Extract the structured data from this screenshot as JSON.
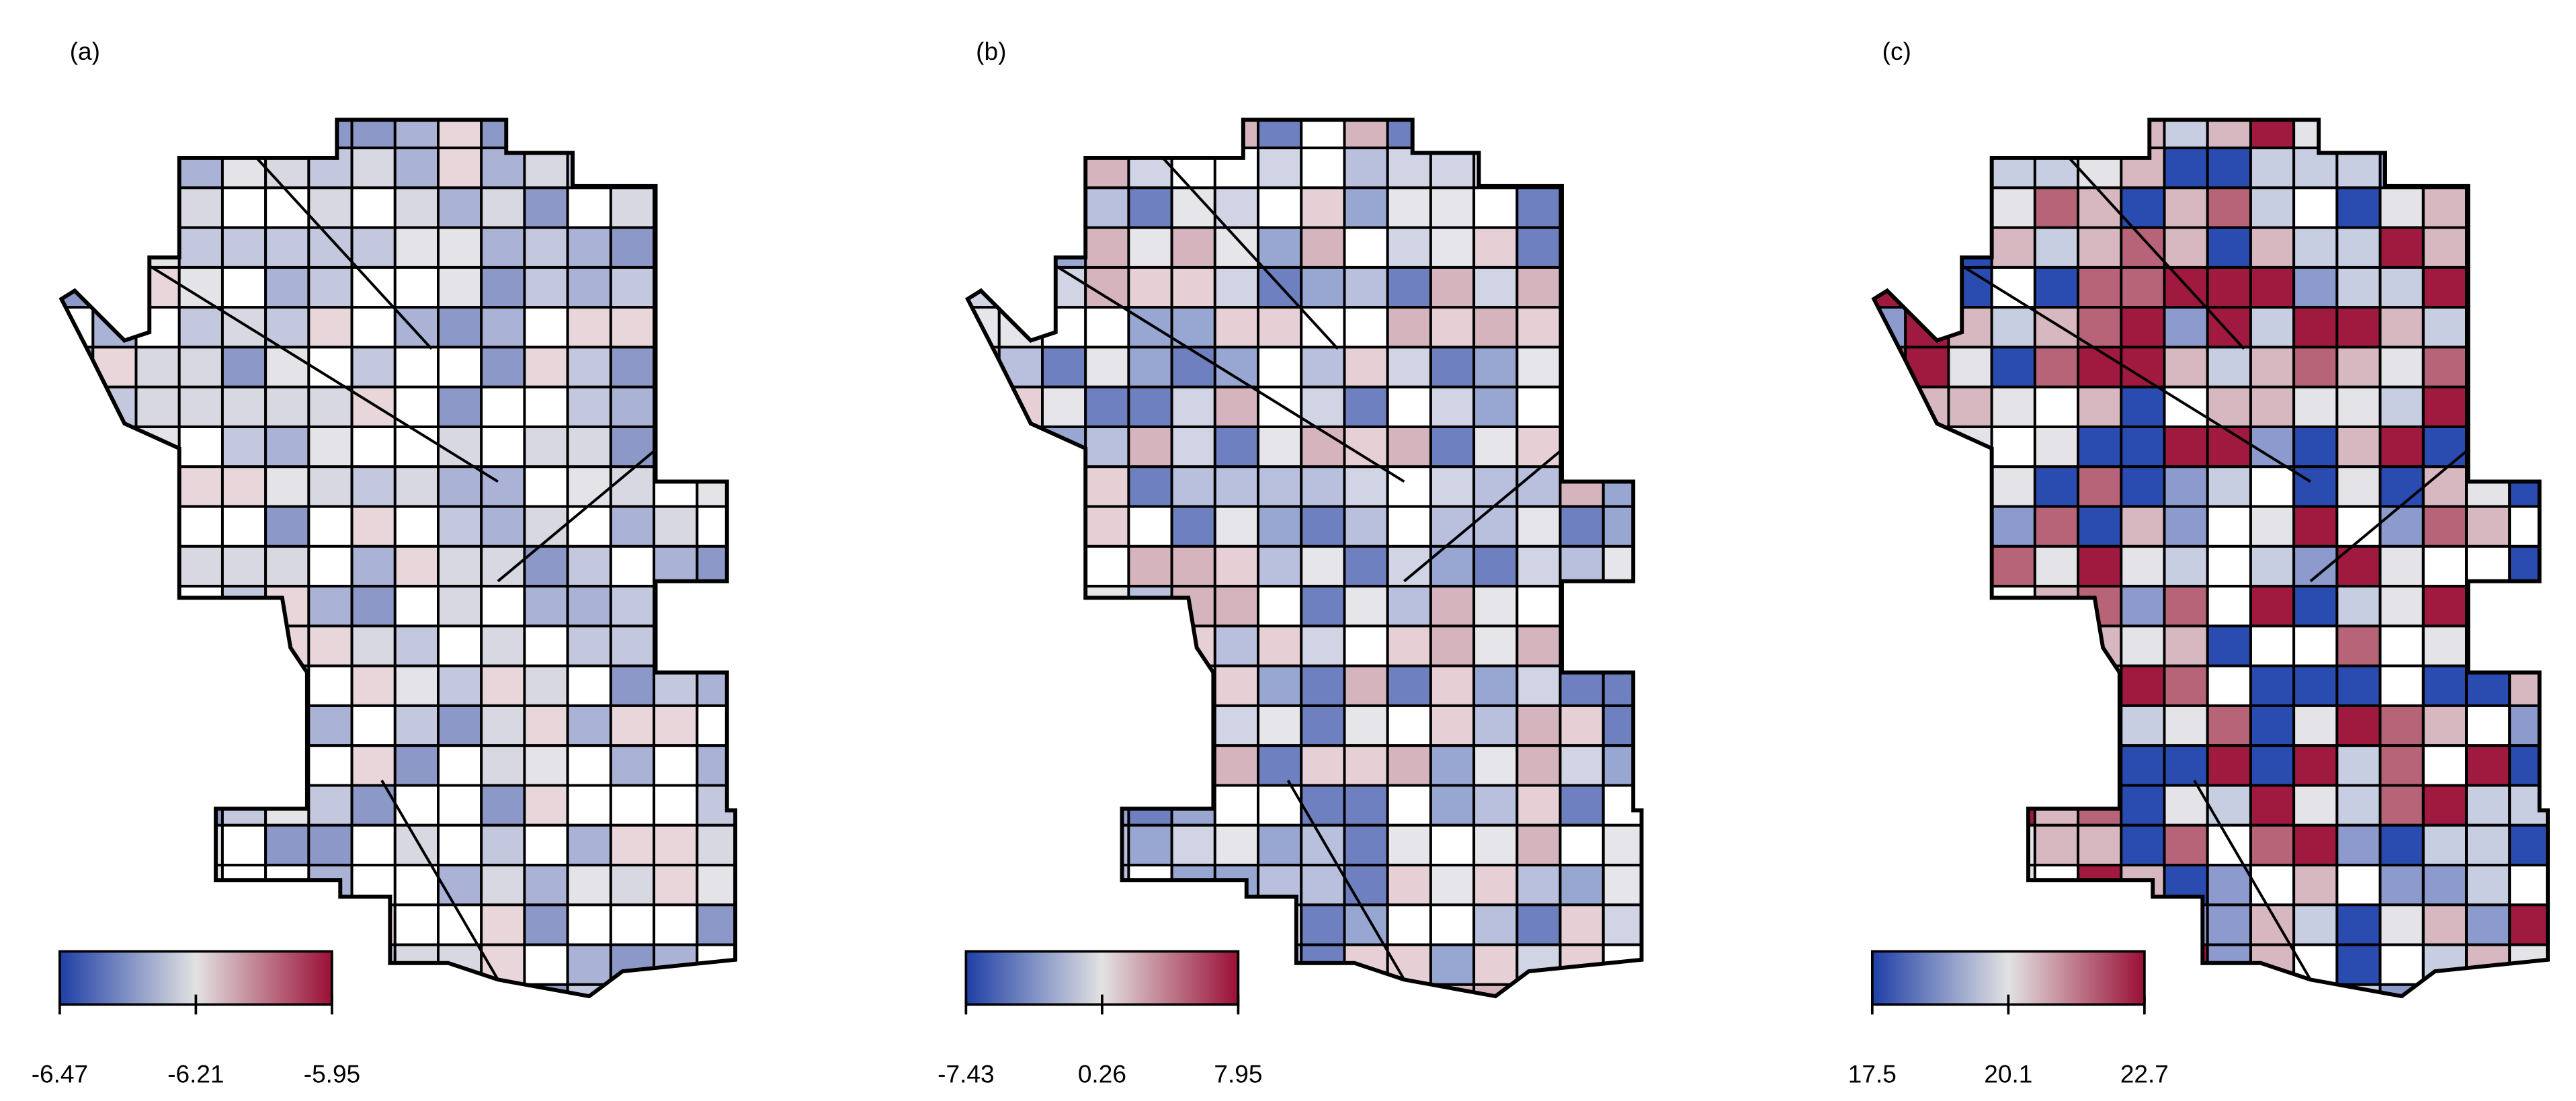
{
  "panels": [
    {
      "label": "(a)",
      "colorbar": {
        "min": -6.47,
        "max": -5.95,
        "ticks": [
          -6.47,
          -6.21,
          -5.95
        ]
      }
    },
    {
      "label": "(b)",
      "colorbar": {
        "min": -7.43,
        "max": 7.95,
        "ticks": [
          -7.43,
          0.26,
          7.95
        ]
      }
    },
    {
      "label": "(c)",
      "colorbar": {
        "min": 17.5,
        "max": 22.7,
        "ticks": [
          17.5,
          20.1,
          22.7
        ]
      }
    }
  ]
}
